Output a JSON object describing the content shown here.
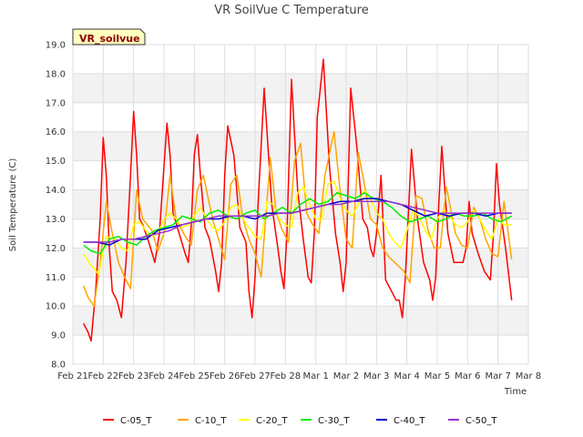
{
  "chart_data": {
    "type": "line",
    "title": "VR SoilVue C Temperature",
    "xlabel": "Time",
    "ylabel": "Soil Temperature (C)",
    "ylim": [
      8.0,
      19.0
    ],
    "yticks": [
      "8.0",
      "9.0",
      "10.0",
      "11.0",
      "12.0",
      "13.0",
      "14.0",
      "15.0",
      "16.0",
      "17.0",
      "18.0",
      "19.0"
    ],
    "xlim": [
      0,
      15
    ],
    "xticks": [
      "Feb 21",
      "Feb 22",
      "Feb 23",
      "Feb 24",
      "Feb 25",
      "Feb 26",
      "Feb 27",
      "Feb 28",
      "Mar 1",
      "Mar 2",
      "Mar 3",
      "Mar 4",
      "Mar 5",
      "Mar 6",
      "Mar 7",
      "Mar 8"
    ],
    "grid": true,
    "legend_position": "bottom",
    "badge": "VR_soilvue",
    "x_note": "x values are days after Feb 21 (0 = Feb 21, 15 = Mar 8)",
    "series": [
      {
        "name": "C-05_T",
        "color": "#ff0000",
        "x": [
          0.35,
          0.5,
          0.6,
          0.75,
          0.9,
          1.0,
          1.1,
          1.2,
          1.3,
          1.45,
          1.6,
          1.75,
          1.9,
          2.0,
          2.1,
          2.2,
          2.3,
          2.5,
          2.7,
          2.85,
          3.0,
          3.1,
          3.2,
          3.3,
          3.5,
          3.7,
          3.8,
          3.9,
          4.0,
          4.1,
          4.2,
          4.35,
          4.5,
          4.7,
          4.8,
          4.9,
          5.0,
          5.1,
          5.3,
          5.5,
          5.7,
          5.8,
          5.9,
          6.0,
          6.1,
          6.3,
          6.55,
          6.75,
          6.85,
          6.95,
          7.05,
          7.2,
          7.4,
          7.6,
          7.75,
          7.85,
          7.95,
          8.05,
          8.25,
          8.45,
          8.65,
          8.8,
          8.9,
          9.0,
          9.15,
          9.35,
          9.55,
          9.7,
          9.8,
          9.9,
          10.0,
          10.15,
          10.3,
          10.5,
          10.65,
          10.75,
          10.85,
          10.95,
          11.15,
          11.35,
          11.55,
          11.75,
          11.85,
          11.95,
          12.05,
          12.15,
          12.35,
          12.55,
          12.75,
          12.85,
          12.95,
          13.05,
          13.15,
          13.35,
          13.55,
          13.75,
          13.85,
          13.95,
          14.05,
          14.25,
          14.45
        ],
        "y": [
          9.4,
          9.1,
          8.8,
          10.5,
          13.0,
          15.8,
          14.5,
          12.0,
          10.5,
          10.2,
          9.6,
          11.5,
          14.5,
          16.7,
          15.2,
          13.0,
          12.8,
          12.2,
          11.5,
          12.5,
          14.8,
          16.3,
          15.2,
          13.2,
          12.5,
          11.8,
          11.5,
          12.8,
          15.2,
          15.9,
          14.5,
          12.7,
          12.3,
          11.2,
          10.5,
          11.5,
          14.5,
          16.2,
          15.2,
          12.7,
          12.2,
          10.5,
          9.6,
          11.0,
          13.5,
          17.5,
          13.5,
          12.0,
          11.2,
          10.6,
          12.5,
          17.8,
          14.0,
          12.2,
          11.0,
          10.8,
          12.5,
          16.5,
          18.5,
          14.8,
          12.5,
          11.5,
          10.5,
          11.5,
          17.5,
          15.5,
          13.0,
          12.7,
          12.0,
          11.7,
          12.5,
          14.5,
          10.9,
          10.5,
          10.2,
          10.2,
          9.6,
          11.0,
          15.4,
          13.0,
          11.5,
          10.9,
          10.2,
          11.0,
          13.5,
          15.5,
          12.5,
          11.5,
          11.5,
          11.5,
          12.0,
          13.6,
          12.5,
          11.8,
          11.2,
          10.9,
          12.5,
          14.9,
          13.5,
          12.0,
          10.2
        ]
      },
      {
        "name": "C-10_T",
        "color": "#ffa500",
        "x": [
          0.35,
          0.5,
          0.7,
          0.9,
          1.1,
          1.3,
          1.5,
          1.7,
          1.9,
          2.1,
          2.3,
          2.6,
          2.8,
          3.0,
          3.2,
          3.4,
          3.7,
          3.9,
          4.1,
          4.3,
          4.6,
          4.8,
          5.0,
          5.2,
          5.4,
          5.6,
          5.8,
          6.0,
          6.2,
          6.5,
          6.7,
          6.9,
          7.1,
          7.3,
          7.5,
          7.7,
          7.9,
          8.1,
          8.3,
          8.6,
          8.8,
          9.0,
          9.2,
          9.4,
          9.6,
          9.8,
          10.0,
          10.2,
          10.4,
          10.7,
          10.9,
          11.1,
          11.3,
          11.5,
          11.7,
          11.9,
          12.1,
          12.3,
          12.6,
          12.8,
          13.0,
          13.2,
          13.4,
          13.6,
          13.8,
          14.0,
          14.2,
          14.45
        ],
        "y": [
          10.7,
          10.3,
          10.0,
          11.5,
          13.6,
          12.5,
          11.5,
          11.0,
          10.6,
          14.0,
          13.0,
          12.6,
          11.9,
          12.5,
          14.5,
          13.0,
          12.4,
          12.1,
          14.0,
          14.5,
          13.0,
          12.3,
          11.6,
          14.2,
          14.5,
          13.0,
          12.3,
          11.8,
          11.0,
          15.1,
          13.2,
          12.6,
          12.2,
          15.0,
          15.6,
          13.2,
          12.8,
          12.5,
          14.5,
          16.0,
          14.0,
          12.3,
          12.0,
          15.3,
          14.2,
          13.0,
          12.8,
          12.0,
          11.7,
          11.4,
          11.2,
          10.8,
          13.8,
          13.7,
          12.6,
          12.0,
          12.0,
          14.1,
          12.5,
          12.1,
          12.0,
          13.4,
          13.0,
          12.3,
          11.8,
          11.7,
          13.6,
          11.6
        ]
      },
      {
        "name": "C-20_T",
        "color": "#ffff00",
        "x": [
          0.35,
          0.6,
          0.85,
          1.1,
          1.4,
          1.6,
          1.8,
          2.0,
          2.2,
          2.4,
          2.6,
          2.8,
          3.0,
          3.2,
          3.4,
          3.6,
          3.8,
          4.0,
          4.2,
          4.4,
          4.6,
          4.8,
          5.0,
          5.2,
          5.4,
          5.6,
          5.8,
          6.0,
          6.2,
          6.4,
          6.6,
          6.8,
          7.0,
          7.2,
          7.4,
          7.6,
          7.8,
          8.0,
          8.2,
          8.4,
          8.6,
          8.8,
          9.0,
          9.2,
          9.4,
          9.6,
          9.8,
          10.0,
          10.2,
          10.4,
          10.6,
          10.8,
          11.0,
          11.2,
          11.4,
          11.6,
          11.8,
          12.0,
          12.2,
          12.4,
          12.6,
          12.8,
          13.0,
          13.2,
          13.4,
          13.6,
          13.8,
          14.0,
          14.2,
          14.45
        ],
        "y": [
          11.8,
          11.4,
          11.1,
          12.4,
          12.3,
          12.0,
          11.9,
          12.8,
          12.9,
          12.6,
          12.4,
          12.5,
          13.0,
          13.2,
          13.0,
          12.7,
          12.8,
          13.1,
          13.4,
          13.0,
          12.7,
          12.6,
          12.9,
          13.4,
          13.5,
          13.0,
          12.7,
          12.4,
          12.3,
          13.6,
          13.5,
          13.0,
          12.8,
          12.7,
          13.9,
          14.1,
          13.5,
          13.0,
          13.0,
          14.2,
          14.3,
          13.7,
          13.3,
          13.1,
          13.5,
          14.0,
          13.7,
          13.2,
          13.0,
          12.5,
          12.2,
          12.0,
          12.6,
          13.3,
          13.1,
          12.6,
          12.3,
          13.0,
          13.3,
          13.1,
          12.8,
          12.7,
          12.9,
          13.3,
          13.0,
          12.6,
          12.3,
          13.0,
          12.8,
          12.8
        ]
      },
      {
        "name": "C-30_T",
        "color": "#00ee00",
        "x": [
          0.35,
          0.6,
          0.9,
          1.2,
          1.5,
          1.8,
          2.1,
          2.4,
          2.7,
          3.0,
          3.3,
          3.6,
          3.9,
          4.2,
          4.5,
          4.8,
          5.1,
          5.4,
          5.7,
          6.0,
          6.3,
          6.6,
          6.9,
          7.2,
          7.5,
          7.8,
          8.1,
          8.4,
          8.7,
          9.0,
          9.3,
          9.6,
          9.9,
          10.2,
          10.5,
          10.8,
          11.1,
          11.4,
          11.7,
          12.0,
          12.3,
          12.6,
          12.9,
          13.2,
          13.5,
          13.8,
          14.1,
          14.45
        ],
        "y": [
          12.1,
          11.9,
          11.8,
          12.3,
          12.4,
          12.2,
          12.1,
          12.4,
          12.6,
          12.7,
          12.8,
          13.1,
          13.0,
          12.9,
          13.2,
          13.3,
          13.1,
          13.0,
          13.2,
          13.3,
          13.0,
          13.2,
          13.4,
          13.2,
          13.5,
          13.7,
          13.5,
          13.6,
          13.9,
          13.8,
          13.7,
          13.9,
          13.7,
          13.6,
          13.4,
          13.1,
          12.9,
          13.0,
          13.1,
          12.9,
          13.0,
          13.2,
          13.1,
          13.1,
          13.2,
          13.0,
          12.9,
          13.1
        ]
      },
      {
        "name": "C-40_T",
        "color": "#0000cd",
        "x": [
          0.35,
          0.8,
          1.2,
          1.6,
          2.0,
          2.4,
          2.8,
          3.2,
          3.6,
          4.0,
          4.4,
          4.8,
          5.2,
          5.6,
          6.0,
          6.4,
          6.8,
          7.2,
          7.6,
          8.0,
          8.4,
          8.8,
          9.2,
          9.6,
          10.0,
          10.4,
          10.8,
          11.2,
          11.6,
          12.0,
          12.4,
          12.8,
          13.2,
          13.6,
          14.0,
          14.45
        ],
        "y": [
          12.2,
          12.2,
          12.1,
          12.3,
          12.3,
          12.3,
          12.6,
          12.7,
          12.8,
          12.9,
          13.0,
          13.0,
          13.1,
          13.1,
          13.0,
          13.2,
          13.2,
          13.2,
          13.3,
          13.4,
          13.5,
          13.6,
          13.6,
          13.7,
          13.7,
          13.6,
          13.5,
          13.3,
          13.1,
          13.2,
          13.1,
          13.2,
          13.2,
          13.1,
          13.2,
          13.2
        ]
      },
      {
        "name": "C-50_T",
        "color": "#9932cc",
        "x": [
          0.35,
          0.8,
          1.2,
          1.6,
          2.0,
          2.4,
          2.8,
          3.2,
          3.6,
          4.0,
          4.4,
          4.8,
          5.2,
          5.6,
          6.0,
          6.4,
          6.8,
          7.2,
          7.6,
          8.0,
          8.4,
          8.8,
          9.2,
          9.6,
          10.0,
          10.4,
          10.8,
          11.2,
          11.6,
          12.0,
          12.4,
          12.8,
          13.2,
          13.6,
          14.0,
          14.45
        ],
        "y": [
          12.2,
          12.2,
          12.2,
          12.3,
          12.3,
          12.4,
          12.5,
          12.6,
          12.8,
          12.9,
          13.0,
          13.1,
          13.1,
          13.1,
          13.1,
          13.1,
          13.2,
          13.2,
          13.3,
          13.4,
          13.5,
          13.5,
          13.6,
          13.6,
          13.6,
          13.6,
          13.5,
          13.4,
          13.3,
          13.2,
          13.2,
          13.2,
          13.2,
          13.2,
          13.2,
          13.2
        ]
      }
    ]
  }
}
